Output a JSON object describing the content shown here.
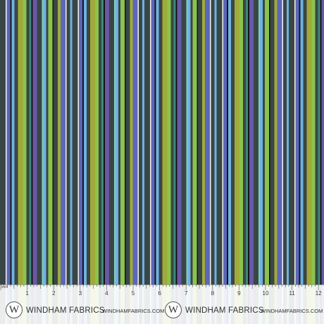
{
  "fabric": {
    "pattern": "vertical-stripes",
    "colors": {
      "charcoal": "#3a4645",
      "olive": "#9faa3b",
      "lime": "#8cc34c",
      "periwinkle": "#5c67b8",
      "sky": "#6fb2e2",
      "purple": "#6a58a6",
      "teal": "#3d8a78",
      "mint": "#7fcfc0",
      "black": "#121617",
      "white": "#f3f5ef"
    }
  },
  "ruler": {
    "unit_label": "inch",
    "numbers": [
      "1",
      "2",
      "3",
      "4",
      "5",
      "6",
      "7",
      "8",
      "9",
      "10",
      "11",
      "12"
    ],
    "brand_left": "WINDHAM FABRICS",
    "site_middle": "WINDHAMFABRICS.COM",
    "brand_right": "WINDHAM FABRICS",
    "site_right": "WINDHAMFABRICS.COM",
    "logo_letter": "W"
  }
}
